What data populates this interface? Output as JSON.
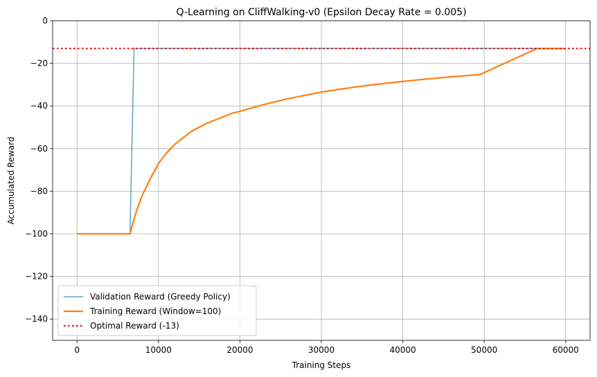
{
  "chart_data": {
    "type": "line",
    "title": "Q-Learning on CliffWalking-v0 (Epsilon Decay Rate = 0.005)",
    "xlabel": "Training Steps",
    "ylabel": "Accumulated Reward",
    "xlim": [
      -3000,
      63000
    ],
    "ylim": [
      -150,
      0
    ],
    "xticks": [
      0,
      10000,
      20000,
      30000,
      40000,
      50000,
      60000
    ],
    "xtick_labels": [
      "0",
      "10000",
      "20000",
      "30000",
      "40000",
      "50000",
      "60000"
    ],
    "yticks": [
      0,
      -20,
      -40,
      -60,
      -80,
      -100,
      -120,
      -140
    ],
    "ytick_labels": [
      "0",
      "−20",
      "−40",
      "−60",
      "−80",
      "−100",
      "−120",
      "−140"
    ],
    "grid": true,
    "legend_position": "lower-left",
    "series": [
      {
        "name": "Validation Reward (Greedy Policy)",
        "color": "#1f77b4",
        "style": "solid-thin",
        "points": [
          [
            0,
            -100
          ],
          [
            6500,
            -100
          ],
          [
            7000,
            -13
          ],
          [
            60000,
            -13
          ]
        ]
      },
      {
        "name": "Training Reward (Window=100)",
        "color": "#ff7f0e",
        "style": "solid",
        "points": [
          [
            0,
            -100
          ],
          [
            6500,
            -100
          ],
          [
            7000,
            -93
          ],
          [
            7500,
            -87
          ],
          [
            8000,
            -82
          ],
          [
            9000,
            -74
          ],
          [
            10000,
            -67
          ],
          [
            11000,
            -62
          ],
          [
            12000,
            -58
          ],
          [
            13000,
            -55
          ],
          [
            14000,
            -52
          ],
          [
            15000,
            -50
          ],
          [
            16000,
            -48
          ],
          [
            17000,
            -46.5
          ],
          [
            18000,
            -45
          ],
          [
            19000,
            -43.5
          ],
          [
            20000,
            -42.5
          ],
          [
            22000,
            -40.3
          ],
          [
            24000,
            -38.3
          ],
          [
            26000,
            -36.5
          ],
          [
            28000,
            -35
          ],
          [
            30000,
            -33.5
          ],
          [
            32000,
            -32.3
          ],
          [
            34000,
            -31.2
          ],
          [
            36000,
            -30.2
          ],
          [
            38000,
            -29.3
          ],
          [
            40000,
            -28.5
          ],
          [
            42000,
            -27.7
          ],
          [
            44000,
            -27
          ],
          [
            46000,
            -26.3
          ],
          [
            48000,
            -25.7
          ],
          [
            49500,
            -25.2
          ],
          [
            56500,
            -13
          ],
          [
            60000,
            -13
          ]
        ]
      },
      {
        "name": "Optimal Reward (-13)",
        "color": "#ff0000",
        "style": "dotted",
        "hline": -13
      }
    ]
  }
}
